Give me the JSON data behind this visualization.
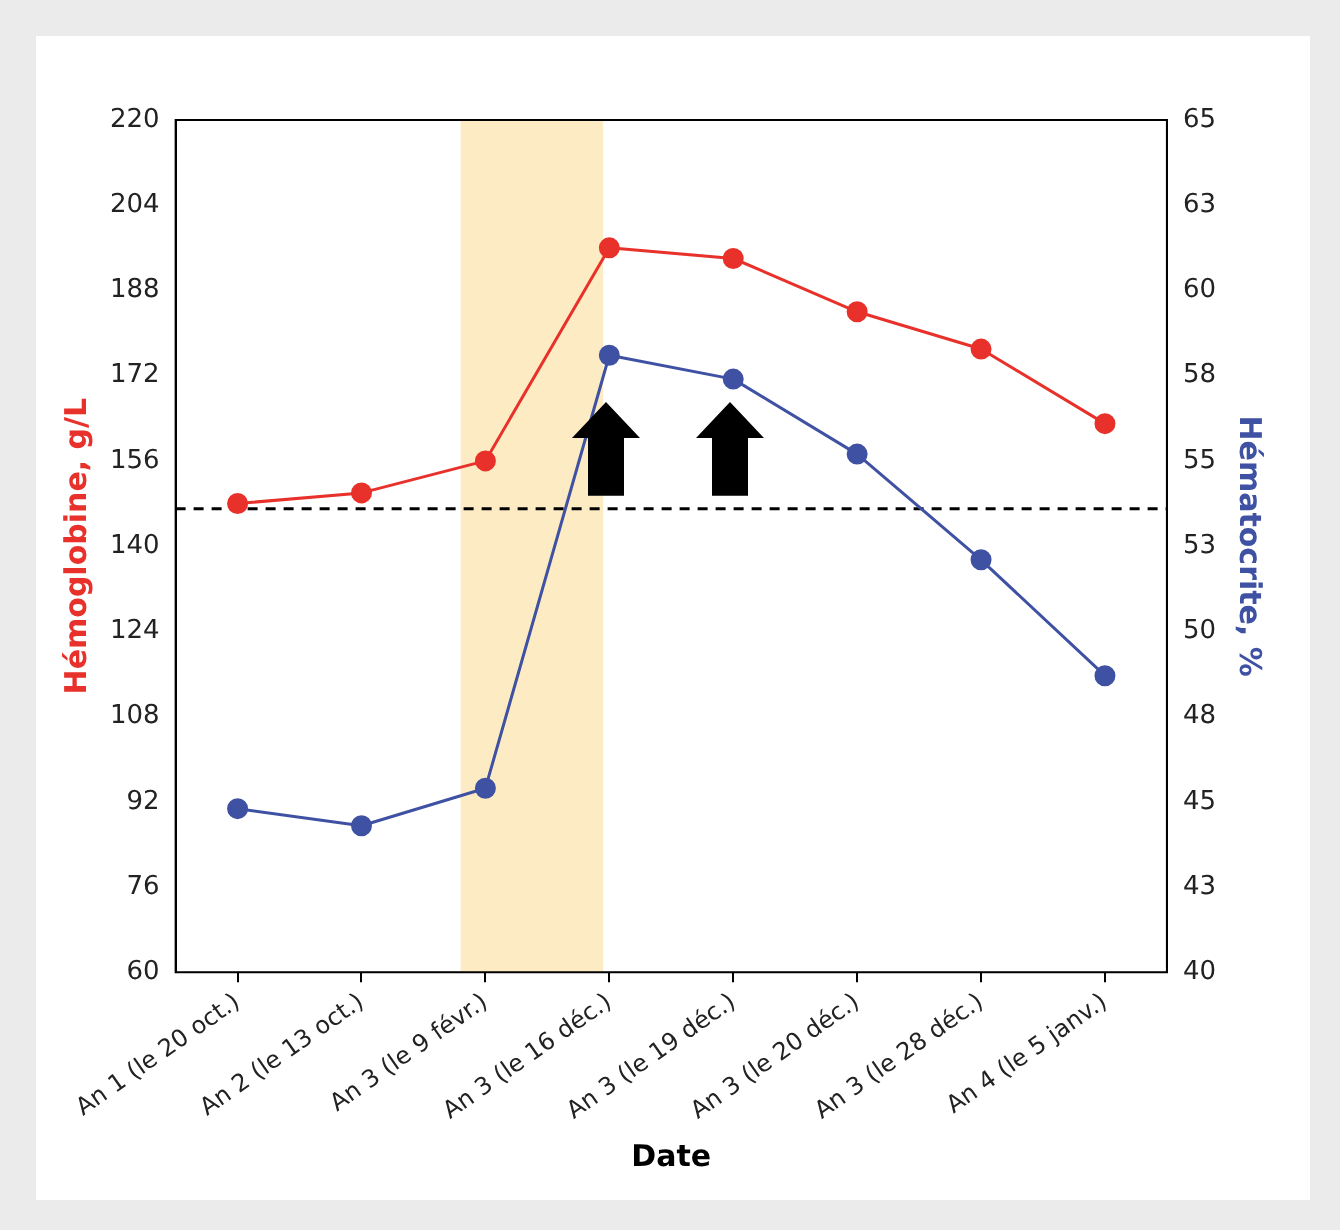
{
  "chart_data": {
    "type": "line",
    "xlabel": "Date",
    "ylabel": "Hémoglobine, g/L",
    "y2label": "Hématocrite, %",
    "categories": [
      "An 1 (le 20 oct.)",
      "An 2 (le 13 oct.)",
      "An 3 (le 9 févr.)",
      "An 3 (le 16 déc.)",
      "An 3 (le 19 déc.)",
      "An 3 (le 20 déc.)",
      "An 3 (le 28 déc.)",
      "An 4 (le 5 janv.)"
    ],
    "series": [
      {
        "color": "#e8312a",
        "values": [
          148,
          150,
          156,
          196,
          194,
          184,
          177,
          163
        ]
      },
      {
        "color": "#3f51a3",
        "axis": "y2",
        "values": [
          44.8,
          44.3,
          45.4,
          58.1,
          57.4,
          55.2,
          52.1,
          48.7
        ]
      }
    ],
    "ylim": [
      60,
      220
    ],
    "yticks": [
      60,
      76,
      92,
      108,
      124,
      140,
      156,
      172,
      188,
      204,
      220
    ],
    "y2lim": [
      40,
      65
    ],
    "y2ticks": [
      40,
      {
        "value": 42.5,
        "label": "43"
      },
      45,
      {
        "value": 47.5,
        "label": "48"
      },
      50,
      {
        "value": 52.5,
        "label": "53"
      },
      55,
      {
        "value": 57.5,
        "label": "58"
      },
      60,
      {
        "value": 62.5,
        "label": "63"
      },
      65
    ],
    "ref_lines": [
      {
        "axis": "y",
        "value": 147,
        "color": "#000000",
        "line_style": "dashed"
      }
    ],
    "bands": [
      {
        "axis": "x",
        "from": "An 3 (le 9 févr.)",
        "to": "An 3 (le 16 déc.)",
        "color": "#fdebc4"
      }
    ],
    "grid": false,
    "legend": false,
    "marker": "circle",
    "line_style": "solid"
  }
}
